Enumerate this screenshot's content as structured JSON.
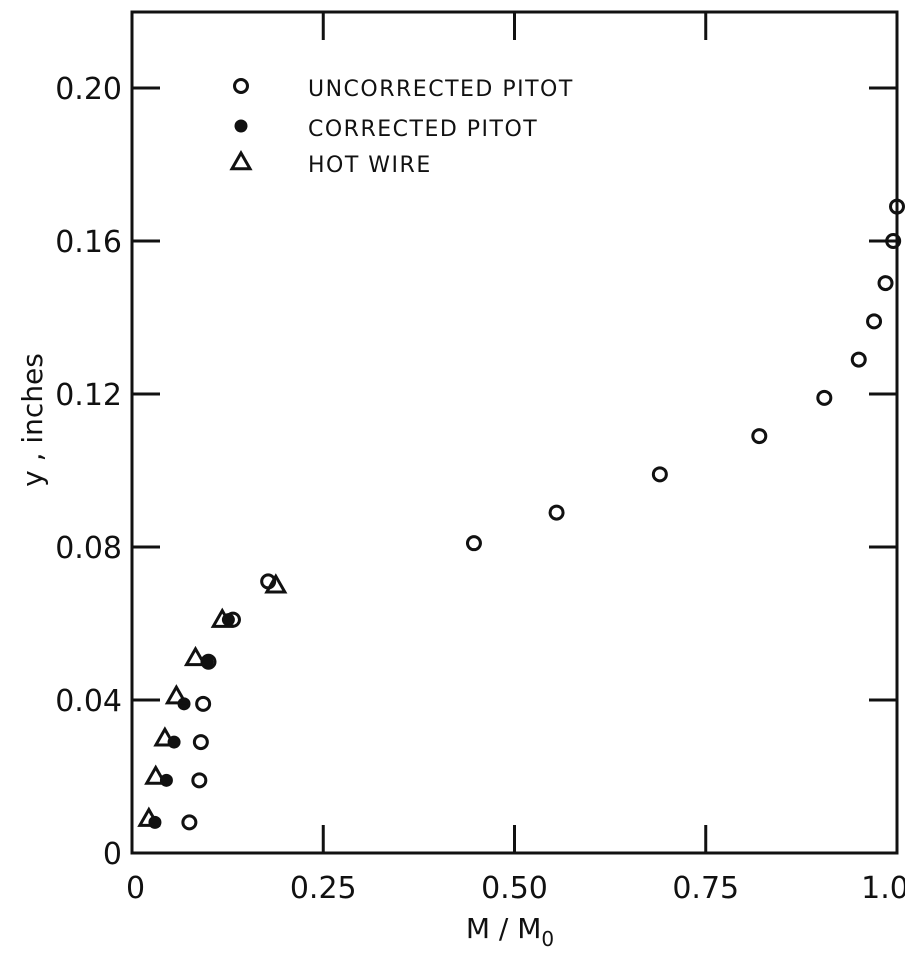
{
  "chart_data": {
    "type": "scatter",
    "xlabel": "M / M",
    "xlabel_subscript": "0",
    "ylabel": "y , inches",
    "xlim": [
      0,
      1.0
    ],
    "ylim": [
      0,
      0.22
    ],
    "x_ticks": [
      0,
      0.25,
      0.5,
      0.75,
      1.0
    ],
    "x_tick_labels": [
      "0",
      "0.25",
      "0.50",
      "0.75",
      "1.0"
    ],
    "y_ticks": [
      0,
      0.04,
      0.08,
      0.12,
      0.16,
      0.2
    ],
    "y_tick_labels": [
      "0",
      "0.04",
      "0.08",
      "0.12",
      "0.16",
      "0.20"
    ],
    "grid": false,
    "legend_position": "top-left",
    "series": [
      {
        "name": "UNCORRECTED PITOT",
        "marker": "open-circle",
        "points": [
          [
            0.075,
            0.008
          ],
          [
            0.088,
            0.019
          ],
          [
            0.09,
            0.029
          ],
          [
            0.093,
            0.039
          ],
          [
            0.1,
            0.05
          ],
          [
            0.132,
            0.061
          ],
          [
            0.178,
            0.071
          ],
          [
            0.447,
            0.081
          ],
          [
            0.555,
            0.089
          ],
          [
            0.69,
            0.099
          ],
          [
            0.82,
            0.109
          ],
          [
            0.905,
            0.119
          ],
          [
            0.95,
            0.129
          ],
          [
            0.97,
            0.139
          ],
          [
            0.985,
            0.149
          ],
          [
            0.995,
            0.16
          ],
          [
            1.0,
            0.169
          ]
        ]
      },
      {
        "name": "CORRECTED PITOT",
        "marker": "filled-circle",
        "points": [
          [
            0.03,
            0.008
          ],
          [
            0.045,
            0.019
          ],
          [
            0.055,
            0.029
          ],
          [
            0.068,
            0.039
          ],
          [
            0.098,
            0.05
          ],
          [
            0.126,
            0.061
          ]
        ]
      },
      {
        "name": "HOT WIRE",
        "marker": "open-triangle",
        "points": [
          [
            0.022,
            0.009
          ],
          [
            0.031,
            0.02
          ],
          [
            0.043,
            0.03
          ],
          [
            0.058,
            0.041
          ],
          [
            0.083,
            0.051
          ],
          [
            0.118,
            0.061
          ],
          [
            0.188,
            0.07
          ]
        ]
      }
    ]
  }
}
